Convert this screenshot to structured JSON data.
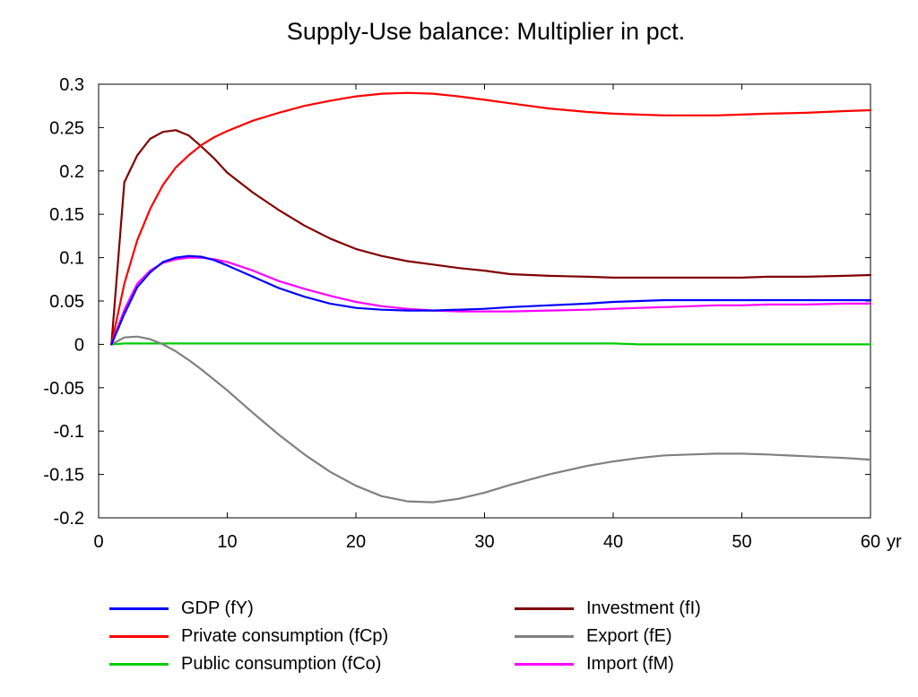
{
  "chart_data": {
    "type": "line",
    "title": "Supply-Use balance: Multiplier in pct.",
    "xlabel": "",
    "ylabel": "",
    "x_unit_label": "yr",
    "xlim": [
      0,
      60
    ],
    "ylim": [
      -0.2,
      0.3
    ],
    "x_ticks": [
      "0",
      "10",
      "20",
      "30",
      "40",
      "50",
      "60"
    ],
    "y_ticks": [
      "0.3",
      "0.25",
      "0.2",
      "0.15",
      "0.1",
      "0.05",
      "0",
      "-0.05",
      "-0.1",
      "-0.15",
      "-0.2"
    ],
    "grid": false,
    "legend_position": "bottom",
    "x": [
      1,
      2,
      3,
      4,
      5,
      6,
      7,
      8,
      9,
      10,
      12,
      14,
      16,
      18,
      20,
      22,
      24,
      26,
      28,
      30,
      32,
      35,
      38,
      40,
      42,
      44,
      46,
      48,
      50,
      52,
      55,
      58,
      60
    ],
    "series": [
      {
        "name": "GDP (fY)",
        "color": "#0000ff",
        "values": [
          0,
          0.035,
          0.066,
          0.083,
          0.095,
          0.1,
          0.102,
          0.101,
          0.097,
          0.091,
          0.078,
          0.065,
          0.055,
          0.047,
          0.042,
          0.04,
          0.039,
          0.039,
          0.04,
          0.041,
          0.043,
          0.045,
          0.047,
          0.049,
          0.05,
          0.051,
          0.051,
          0.051,
          0.051,
          0.051,
          0.051,
          0.051,
          0.051
        ]
      },
      {
        "name": "Private consumption (fCp)",
        "color": "#ff0000",
        "values": [
          0,
          0.07,
          0.12,
          0.156,
          0.184,
          0.204,
          0.218,
          0.23,
          0.239,
          0.246,
          0.258,
          0.267,
          0.275,
          0.281,
          0.286,
          0.289,
          0.29,
          0.289,
          0.286,
          0.282,
          0.278,
          0.272,
          0.268,
          0.266,
          0.265,
          0.264,
          0.264,
          0.264,
          0.265,
          0.266,
          0.267,
          0.269,
          0.27
        ]
      },
      {
        "name": "Public consumption (fCo)",
        "color": "#00cc00",
        "values": [
          0,
          0.001,
          0.001,
          0.001,
          0.001,
          0.001,
          0.001,
          0.001,
          0.001,
          0.001,
          0.001,
          0.001,
          0.001,
          0.001,
          0.001,
          0.001,
          0.001,
          0.001,
          0.001,
          0.001,
          0.001,
          0.001,
          0.001,
          0.001,
          0.0,
          0.0,
          0.0,
          0.0,
          0.0,
          0.0,
          0.0,
          0.0,
          0.0
        ]
      },
      {
        "name": "Investment (fI)",
        "color": "#800000",
        "values": [
          0,
          0.187,
          0.218,
          0.237,
          0.245,
          0.247,
          0.241,
          0.228,
          0.214,
          0.198,
          0.175,
          0.155,
          0.137,
          0.122,
          0.11,
          0.102,
          0.096,
          0.092,
          0.088,
          0.085,
          0.081,
          0.079,
          0.078,
          0.077,
          0.077,
          0.077,
          0.077,
          0.077,
          0.077,
          0.078,
          0.078,
          0.079,
          0.08
        ]
      },
      {
        "name": "Export (fE)",
        "color": "#808080",
        "values": [
          0,
          0.008,
          0.009,
          0.006,
          0.0,
          -0.008,
          -0.018,
          -0.029,
          -0.041,
          -0.053,
          -0.079,
          -0.104,
          -0.127,
          -0.147,
          -0.163,
          -0.175,
          -0.181,
          -0.182,
          -0.178,
          -0.171,
          -0.162,
          -0.15,
          -0.14,
          -0.135,
          -0.131,
          -0.128,
          -0.127,
          -0.126,
          -0.126,
          -0.127,
          -0.129,
          -0.131,
          -0.133
        ]
      },
      {
        "name": "Import (fM)",
        "color": "#ff00ff",
        "values": [
          0,
          0.04,
          0.07,
          0.085,
          0.094,
          0.098,
          0.1,
          0.1,
          0.098,
          0.095,
          0.085,
          0.073,
          0.064,
          0.056,
          0.049,
          0.044,
          0.041,
          0.039,
          0.038,
          0.038,
          0.038,
          0.039,
          0.04,
          0.041,
          0.042,
          0.043,
          0.044,
          0.045,
          0.045,
          0.046,
          0.046,
          0.047,
          0.047
        ]
      }
    ]
  }
}
